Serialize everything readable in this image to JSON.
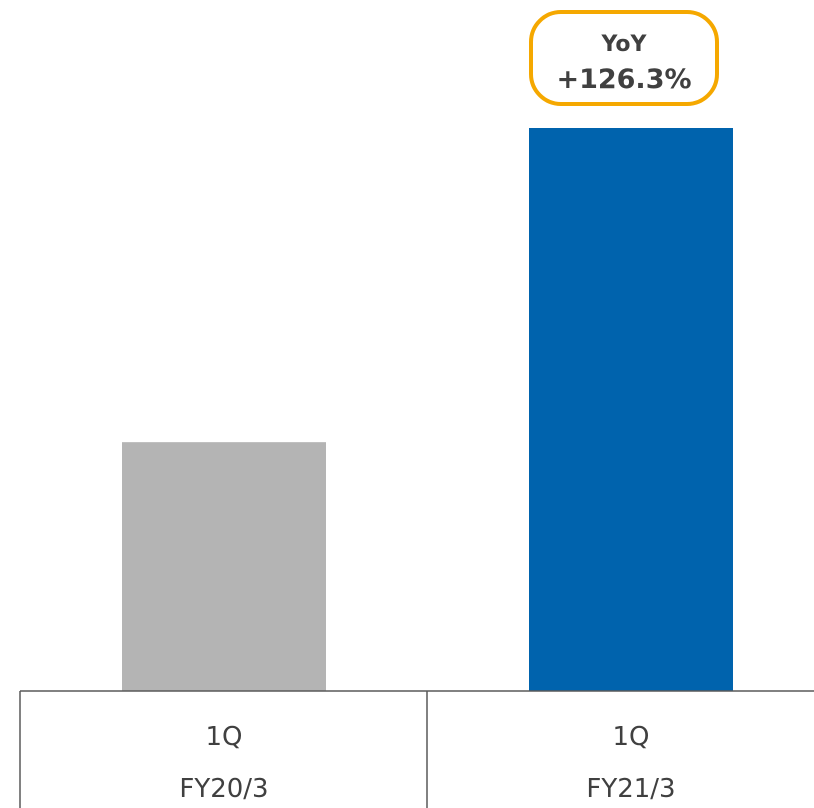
{
  "chart_data": {
    "type": "bar",
    "categories": [
      "1Q",
      "1Q"
    ],
    "groups": [
      "FY20/3",
      "FY21/3"
    ],
    "values": [
      44.2,
      100
    ],
    "colors": [
      "#b4b4b4",
      "#0063ad"
    ],
    "ylim": [
      0,
      100
    ],
    "title": "",
    "xlabel": "",
    "ylabel": "",
    "grid": false,
    "annotation": {
      "line1": "YoY",
      "line2": "+126.3%",
      "border_color": "#f5a800"
    }
  }
}
